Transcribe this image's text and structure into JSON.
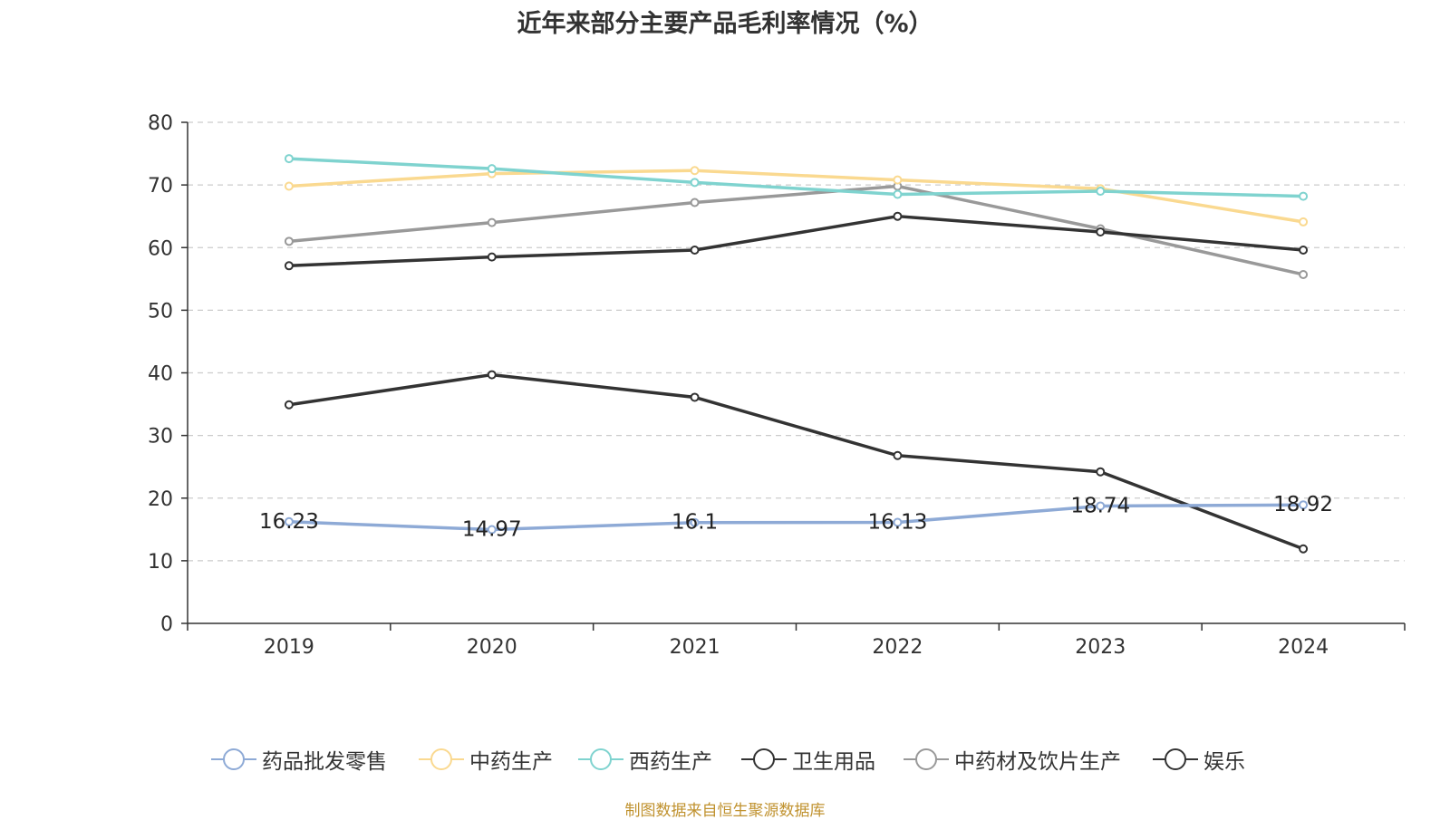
{
  "chart_data": {
    "type": "line",
    "title": "近年来部分主要产品毛利率情况（%）",
    "categories": [
      "2019",
      "2020",
      "2021",
      "2022",
      "2023",
      "2024"
    ],
    "ylim": [
      0,
      80
    ],
    "yticks": [
      0,
      10,
      20,
      30,
      40,
      50,
      60,
      70,
      80
    ],
    "grid": true,
    "legend_position": "bottom",
    "series": [
      {
        "name": "药品批发零售",
        "color": "#8eaad6",
        "values": [
          16.23,
          14.97,
          16.1,
          16.13,
          18.74,
          18.92
        ],
        "data_labels": [
          "16.23",
          "14.97",
          "16.1",
          "16.13",
          "18.74",
          "18.92"
        ]
      },
      {
        "name": "中药生产",
        "color": "#fad990",
        "values": [
          69.8,
          71.8,
          72.3,
          70.8,
          69.4,
          64.1
        ]
      },
      {
        "name": "西药生产",
        "color": "#7fd3cf",
        "values": [
          74.2,
          72.6,
          70.4,
          68.5,
          69.0,
          68.2
        ]
      },
      {
        "name": "卫生用品",
        "color": "#333333",
        "values": [
          57.1,
          58.5,
          59.6,
          65.0,
          62.5,
          59.6
        ]
      },
      {
        "name": "中药材及饮片生产",
        "color": "#999999",
        "values": [
          61.0,
          64.0,
          67.2,
          69.8,
          63.0,
          55.7
        ]
      },
      {
        "name": "娱乐",
        "color": "#333333",
        "values": [
          34.9,
          39.7,
          36.1,
          26.8,
          24.2,
          11.9
        ]
      }
    ]
  },
  "source_text": "制图数据来自恒生聚源数据库"
}
